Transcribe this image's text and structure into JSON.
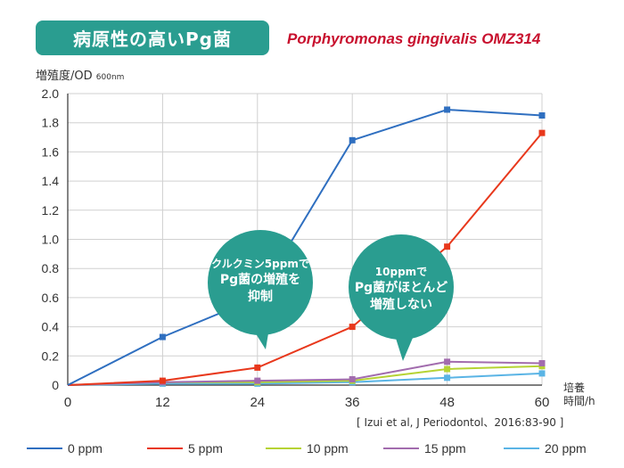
{
  "header": {
    "title": "病原性の高いPg菌",
    "species": "Porphyromonas gingivalis OMZ314"
  },
  "axes": {
    "y_label": "増殖度/OD",
    "y_unit": "600nm",
    "x_unit_line1": "培養",
    "x_unit_line2": "時間/h"
  },
  "citation": "[ Izui et al, J Periodontol、2016:83-90 ]",
  "annotations": [
    {
      "line1": "クルクミン5ppmで",
      "line2": "Pg菌の増殖を",
      "line3": "抑制"
    },
    {
      "line1": "10ppmで",
      "line2": "Pg菌がほとんど",
      "line3": "増殖しない"
    }
  ],
  "colors": {
    "title_bg": "#2a9d90",
    "species": "#c8102e",
    "bubble": "#2a9d90",
    "grid": "#d0d0d0",
    "axis": "#333333"
  },
  "chart_data": {
    "type": "line",
    "title": "病原性の高いPg菌",
    "xlabel": "培養時間/h",
    "ylabel": "増殖度/OD 600nm",
    "x": [
      0,
      12,
      24,
      36,
      48,
      60
    ],
    "xlim": [
      0,
      60
    ],
    "ylim": [
      0,
      2.0
    ],
    "y_ticks": [
      "0",
      "0.2",
      "0.4",
      "0.6",
      "0.8",
      "1.0",
      "1.2",
      "1.4",
      "1.6",
      "1.8",
      "2.0"
    ],
    "x_ticks": [
      "0",
      "12",
      "24",
      "36",
      "48",
      "60"
    ],
    "grid": true,
    "legend_position": "bottom",
    "series": [
      {
        "name": "0 ppm",
        "color": "#2f6fc0",
        "values": [
          0,
          0.33,
          0.6,
          1.68,
          1.89,
          1.85
        ]
      },
      {
        "name": "5 ppm",
        "color": "#e8381c",
        "values": [
          0,
          0.03,
          0.12,
          0.4,
          0.95,
          1.73
        ]
      },
      {
        "name": "10 ppm",
        "color": "#b6d334",
        "values": [
          0,
          0.02,
          0.02,
          0.03,
          0.11,
          0.13
        ]
      },
      {
        "name": "15 ppm",
        "color": "#a26cae",
        "values": [
          0,
          0.02,
          0.03,
          0.04,
          0.16,
          0.15
        ]
      },
      {
        "name": "20 ppm",
        "color": "#5ab4e5",
        "values": [
          0,
          0.01,
          0.01,
          0.02,
          0.05,
          0.08
        ]
      }
    ]
  }
}
